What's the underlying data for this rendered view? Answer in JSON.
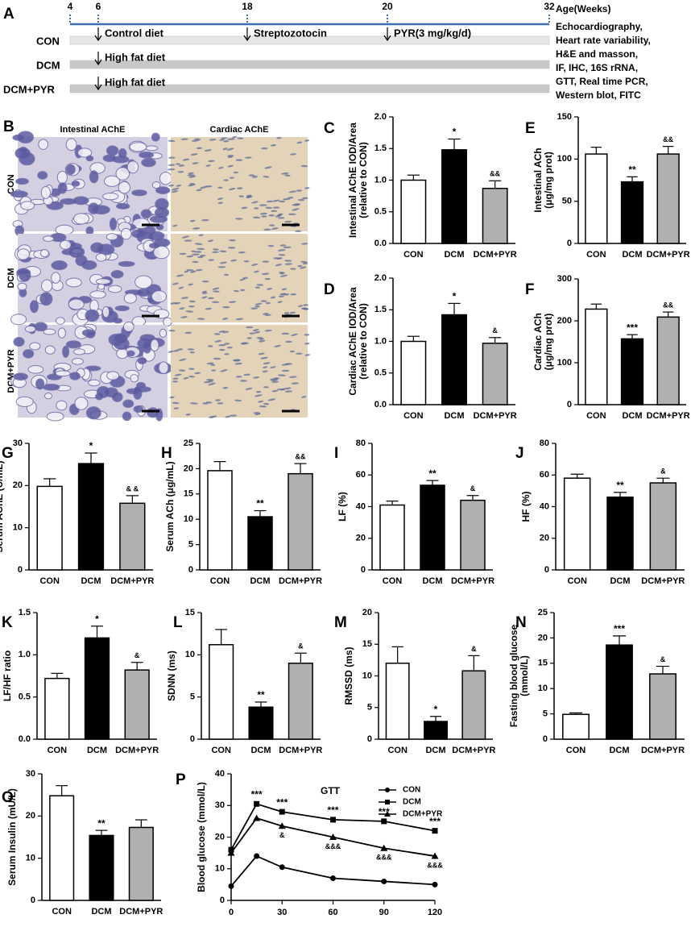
{
  "timeline": {
    "label": "A",
    "axis_label": "Age(Weeks)",
    "ticks": [
      "4",
      "6",
      "18",
      "20",
      "32"
    ],
    "groups": [
      {
        "name": "CON",
        "events": [
          "Control diet",
          "Streptozotocin",
          "PYR(3 mg/kg/d)"
        ]
      },
      {
        "name": "DCM",
        "events": [
          "High fat diet"
        ]
      },
      {
        "name": "DCM+PYR",
        "events": [
          "High fat diet"
        ]
      }
    ],
    "readouts": [
      "Echocardiography,",
      "Heart rate variability,",
      "H&E and masson,",
      "IF, IHC, 16S rRNA,",
      "GTT, Real time PCR,",
      "Western blot, FITC"
    ]
  },
  "histology": {
    "label": "B",
    "columns": [
      "Intestinal AChE",
      "Cardiac AChE"
    ],
    "rows": [
      "CON",
      "DCM",
      "DCM+PYR"
    ]
  },
  "chart_data": [
    {
      "type": "bar",
      "label": "C",
      "ylabel": [
        "Intestinal AChE IOD/Area",
        "(relative to CON)"
      ],
      "categories": [
        "CON",
        "DCM",
        "DCM+PYR"
      ],
      "values": [
        1.0,
        1.48,
        0.87
      ],
      "errors": [
        0.08,
        0.17,
        0.12
      ],
      "significance": [
        null,
        "*",
        "&&"
      ],
      "colors": [
        "#ffffff",
        "#000000",
        "#b0b0b0"
      ],
      "ylim": [
        0,
        2.0
      ],
      "yticks": [
        {
          "value": 0,
          "label": "0.0"
        },
        {
          "value": 0.5,
          "label": "0.5"
        },
        {
          "value": 1,
          "label": "1.0"
        },
        {
          "value": 1.5,
          "label": "1.5"
        },
        {
          "value": 2,
          "label": "2.0"
        }
      ]
    },
    {
      "type": "bar",
      "label": "D",
      "ylabel": [
        "Cardiac AChE IOD/Area",
        "(relative to CON)"
      ],
      "categories": [
        "CON",
        "DCM",
        "DCM+PYR"
      ],
      "values": [
        1.0,
        1.42,
        0.97
      ],
      "errors": [
        0.08,
        0.18,
        0.09
      ],
      "significance": [
        null,
        "*",
        "&"
      ],
      "colors": [
        "#ffffff",
        "#000000",
        "#b0b0b0"
      ],
      "ylim": [
        0,
        2.0
      ],
      "yticks": [
        {
          "value": 0,
          "label": "0.0"
        },
        {
          "value": 0.5,
          "label": "0.5"
        },
        {
          "value": 1,
          "label": "1.0"
        },
        {
          "value": 1.5,
          "label": "1.5"
        },
        {
          "value": 2,
          "label": "2.0"
        }
      ]
    },
    {
      "type": "bar",
      "label": "E",
      "ylabel": [
        "Intestinal ACh",
        "(μg/mg prot)"
      ],
      "categories": [
        "CON",
        "DCM",
        "DCM+PYR"
      ],
      "values": [
        106,
        73,
        106
      ],
      "errors": [
        8,
        6,
        9
      ],
      "significance": [
        null,
        "**",
        "&&"
      ],
      "colors": [
        "#ffffff",
        "#000000",
        "#b0b0b0"
      ],
      "ylim": [
        0,
        150
      ],
      "yticks": [
        0,
        50,
        100,
        150
      ]
    },
    {
      "type": "bar",
      "label": "F",
      "ylabel": [
        "Cardiac ACh",
        "(μg/mg prot)"
      ],
      "categories": [
        "CON",
        "DCM",
        "DCM+PYR"
      ],
      "values": [
        228,
        157,
        209
      ],
      "errors": [
        12,
        10,
        12
      ],
      "significance": [
        null,
        "***",
        "&&"
      ],
      "colors": [
        "#ffffff",
        "#000000",
        "#b0b0b0"
      ],
      "ylim": [
        0,
        300
      ],
      "yticks": [
        0,
        100,
        200,
        300
      ]
    },
    {
      "type": "bar",
      "label": "G",
      "ylabel": [
        "Serum AChE (U/mL)"
      ],
      "categories": [
        "CON",
        "DCM",
        "DCM+PYR"
      ],
      "values": [
        19.8,
        25.2,
        15.8
      ],
      "errors": [
        1.8,
        2.5,
        1.8
      ],
      "significance": [
        null,
        "*",
        "& &"
      ],
      "colors": [
        "#ffffff",
        "#000000",
        "#b0b0b0"
      ],
      "ylim": [
        0,
        30
      ],
      "yticks": [
        0,
        10,
        20,
        30
      ]
    },
    {
      "type": "bar",
      "label": "H",
      "ylabel": [
        "Serum ACh (μg/mL)"
      ],
      "categories": [
        "CON",
        "DCM",
        "DCM+PYR"
      ],
      "values": [
        19.6,
        10.5,
        19
      ],
      "errors": [
        1.8,
        1.2,
        2
      ],
      "significance": [
        null,
        "**",
        "&&"
      ],
      "colors": [
        "#ffffff",
        "#000000",
        "#b0b0b0"
      ],
      "ylim": [
        0,
        25
      ],
      "yticks": [
        0,
        5,
        10,
        15,
        20,
        25
      ]
    },
    {
      "type": "bar",
      "label": "I",
      "ylabel": [
        "LF (%)"
      ],
      "categories": [
        "CON",
        "DCM",
        "DCM+PYR"
      ],
      "values": [
        41,
        53.5,
        44
      ],
      "errors": [
        2.5,
        3,
        3
      ],
      "significance": [
        null,
        "**",
        "&"
      ],
      "colors": [
        "#ffffff",
        "#000000",
        "#b0b0b0"
      ],
      "ylim": [
        0,
        80
      ],
      "yticks": [
        0,
        20,
        40,
        60,
        80
      ]
    },
    {
      "type": "bar",
      "label": "J",
      "ylabel": [
        "HF (%)"
      ],
      "categories": [
        "CON",
        "DCM",
        "DCM+PYR"
      ],
      "values": [
        58,
        46,
        55
      ],
      "errors": [
        2.5,
        3,
        3
      ],
      "significance": [
        null,
        "**",
        "&"
      ],
      "colors": [
        "#ffffff",
        "#000000",
        "#b0b0b0"
      ],
      "ylim": [
        0,
        80
      ],
      "yticks": [
        0,
        20,
        40,
        60,
        80
      ]
    },
    {
      "type": "bar",
      "label": "K",
      "ylabel": [
        "LF/HF ratio"
      ],
      "categories": [
        "CON",
        "DCM",
        "DCM+PYR"
      ],
      "values": [
        0.72,
        1.2,
        0.82
      ],
      "errors": [
        0.06,
        0.14,
        0.09
      ],
      "significance": [
        null,
        "*",
        "&"
      ],
      "colors": [
        "#ffffff",
        "#000000",
        "#b0b0b0"
      ],
      "ylim": [
        0,
        1.5
      ],
      "yticks": [
        {
          "value": 0,
          "label": "0.0"
        },
        {
          "value": 0.5,
          "label": "0.5"
        },
        {
          "value": 1,
          "label": "1.0"
        },
        {
          "value": 1.5,
          "label": "1.5"
        }
      ]
    },
    {
      "type": "bar",
      "label": "L",
      "ylabel": [
        "SDNN (ms)"
      ],
      "categories": [
        "CON",
        "DCM",
        "DCM+PYR"
      ],
      "values": [
        11.2,
        3.8,
        9.0
      ],
      "errors": [
        1.8,
        0.6,
        1.2
      ],
      "significance": [
        null,
        "**",
        "&"
      ],
      "colors": [
        "#ffffff",
        "#000000",
        "#b0b0b0"
      ],
      "ylim": [
        0,
        15
      ],
      "yticks": [
        0,
        5,
        10,
        15
      ]
    },
    {
      "type": "bar",
      "label": "M",
      "ylabel": [
        "RMSSD (ms)"
      ],
      "categories": [
        "CON",
        "DCM",
        "DCM+PYR"
      ],
      "values": [
        12,
        2.8,
        10.8
      ],
      "errors": [
        2.6,
        0.8,
        2.4
      ],
      "significance": [
        null,
        "*",
        "&"
      ],
      "colors": [
        "#ffffff",
        "#000000",
        "#b0b0b0"
      ],
      "ylim": [
        0,
        20
      ],
      "yticks": [
        0,
        5,
        10,
        15,
        20
      ]
    },
    {
      "type": "bar",
      "label": "N",
      "ylabel": [
        "Fasting blood glucose",
        "(mmol/L)"
      ],
      "categories": [
        "CON",
        "DCM",
        "DCM+PYR"
      ],
      "values": [
        4.9,
        18.6,
        12.9
      ],
      "errors": [
        0.3,
        1.8,
        1.5
      ],
      "significance": [
        null,
        "***",
        "&"
      ],
      "colors": [
        "#ffffff",
        "#000000",
        "#b0b0b0"
      ],
      "ylim": [
        0,
        25
      ],
      "yticks": [
        0,
        5,
        10,
        15,
        20,
        25
      ]
    },
    {
      "type": "bar",
      "label": "O",
      "ylabel": [
        "Serum Insulin (mU/L)"
      ],
      "categories": [
        "CON",
        "DCM",
        "DCM+PYR"
      ],
      "values": [
        24.8,
        15.4,
        17.3
      ],
      "errors": [
        2.4,
        1.2,
        1.8
      ],
      "significance": [
        null,
        "**",
        null
      ],
      "colors": [
        "#ffffff",
        "#000000",
        "#b0b0b0"
      ],
      "ylim": [
        0,
        30
      ],
      "yticks": [
        0,
        10,
        20,
        30
      ]
    },
    {
      "type": "line",
      "label": "P",
      "title": "GTT",
      "ylabel": [
        "Blood glucose (mmol/L)"
      ],
      "x": [
        0,
        15,
        30,
        60,
        90,
        120
      ],
      "xlim": [
        0,
        120
      ],
      "xticks": [
        0,
        30,
        60,
        90,
        120
      ],
      "ylim": [
        0,
        40
      ],
      "yticks": [
        0,
        10,
        20,
        30,
        40
      ],
      "series": [
        {
          "name": "CON",
          "color": "#000000",
          "marker": "circle",
          "values": [
            4.5,
            14,
            10.5,
            7,
            6,
            5
          ]
        },
        {
          "name": "DCM",
          "color": "#000000",
          "marker": "square",
          "values": [
            16,
            30.5,
            28,
            25.5,
            25,
            22
          ],
          "point_labels": [
            null,
            "***",
            "***",
            "***",
            "***",
            "***"
          ]
        },
        {
          "name": "DCM+PYR",
          "color": "#000000",
          "marker": "triangle",
          "values": [
            15,
            26,
            23.5,
            20,
            16.5,
            14
          ],
          "point_labels": [
            null,
            null,
            "&",
            "&&&",
            "&&&",
            "&&&"
          ]
        }
      ]
    }
  ]
}
